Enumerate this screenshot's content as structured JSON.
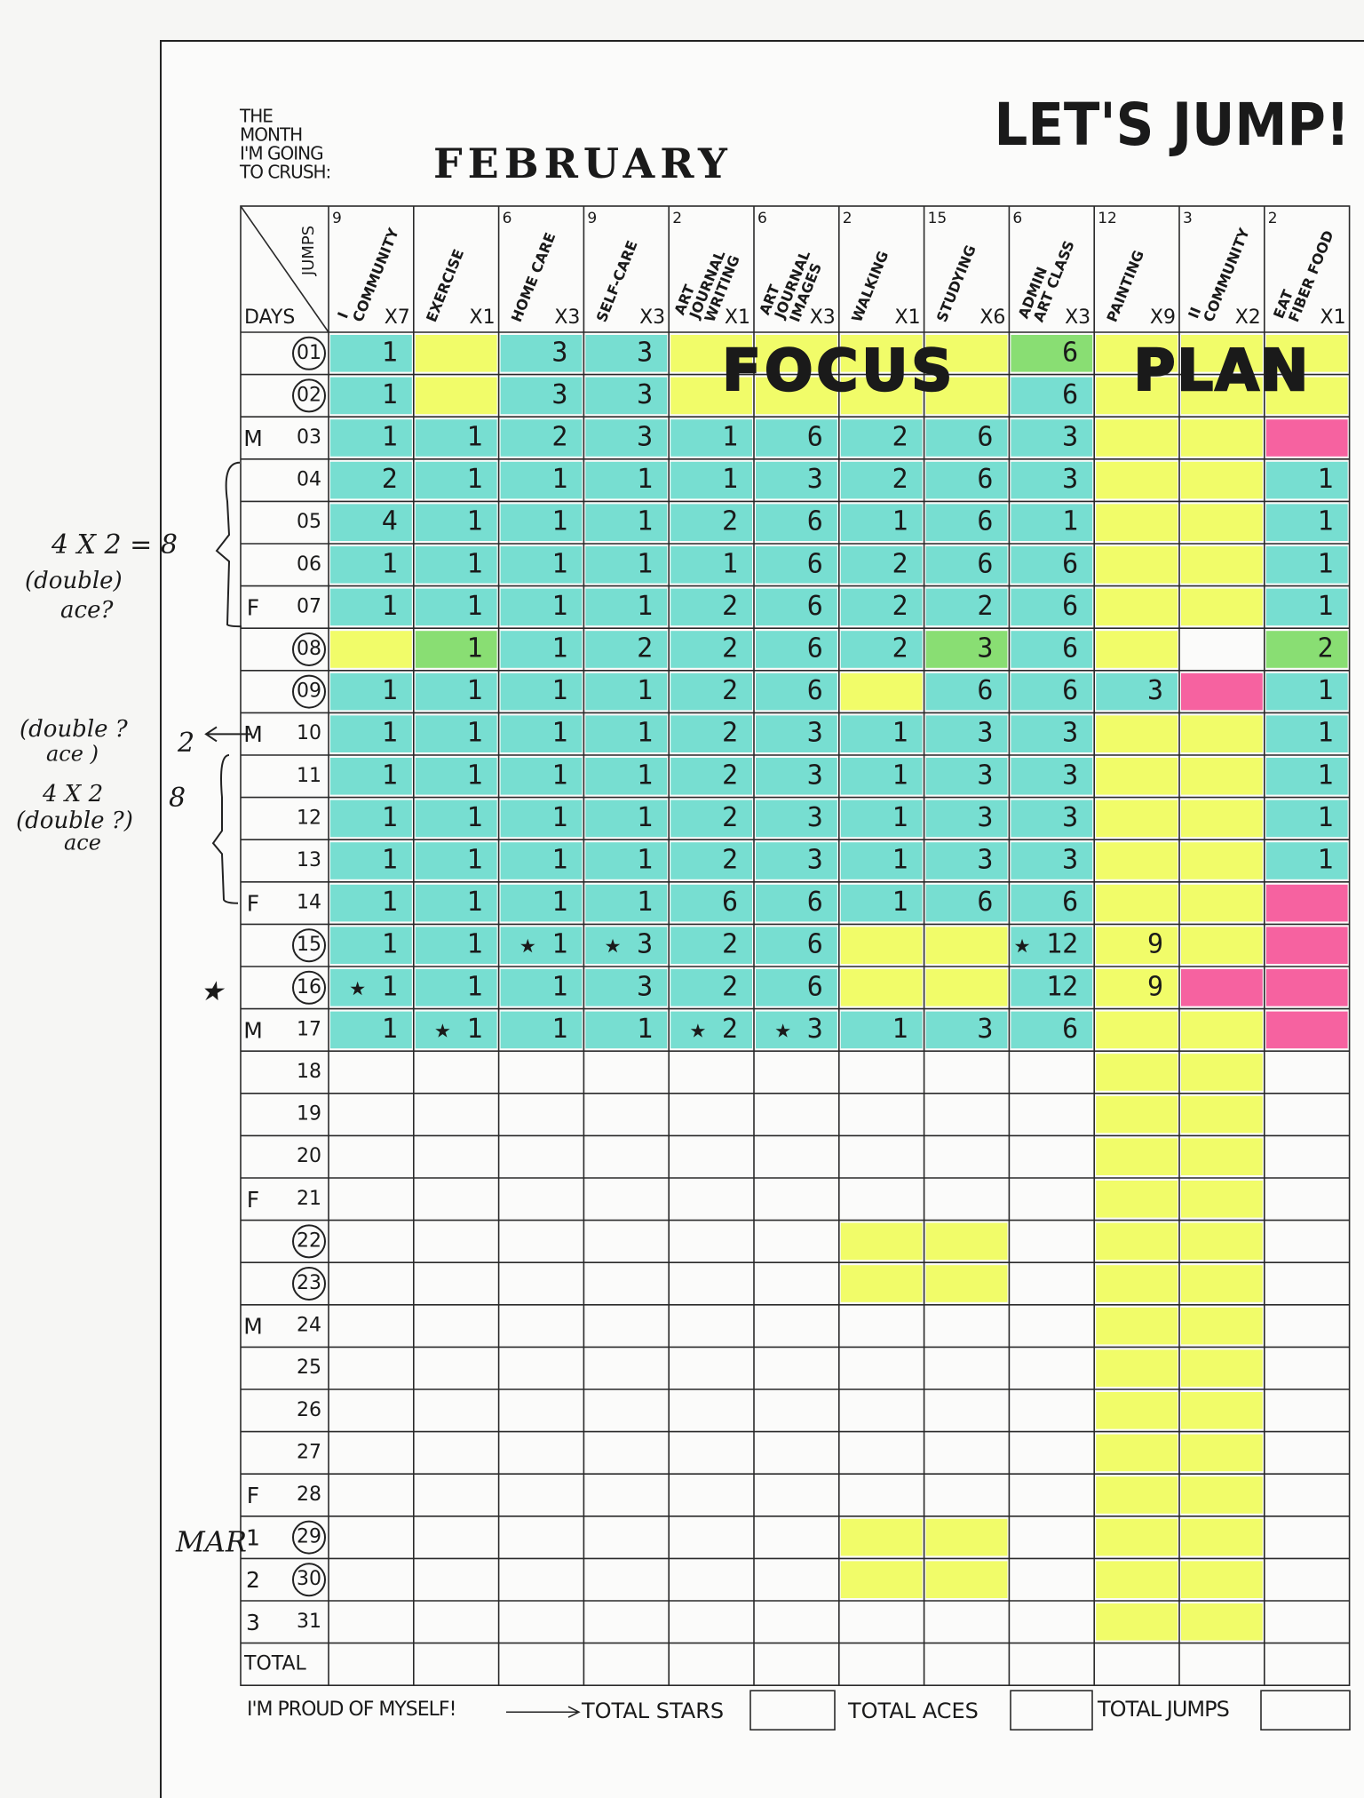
{
  "header": {
    "month_prompt": [
      "THE",
      "MONTH",
      "I'M GOING",
      "TO CRUSH:"
    ],
    "month": "FEBRUARY",
    "title": "LET'S JUMP!"
  },
  "table": {
    "corner": {
      "days": "DAYS",
      "jumps": "JUMPS"
    },
    "columns": [
      {
        "jumps": 9,
        "name": [
          "I",
          "COMMUNITY"
        ],
        "multiplier": "X7"
      },
      {
        "name": [
          "EXERCISE"
        ],
        "multiplier": "X1"
      },
      {
        "jumps": 6,
        "name": [
          "HOME CARE"
        ],
        "multiplier": "X3"
      },
      {
        "jumps": 9,
        "name": [
          "SELF-CARE"
        ],
        "multiplier": "X3"
      },
      {
        "jumps": 2,
        "name": [
          "ART",
          "JOURNAL",
          "WRITING"
        ],
        "multiplier": "X1"
      },
      {
        "jumps": 6,
        "name": [
          "ART",
          "JOURNAL",
          "IMAGES"
        ],
        "multiplier": "X3"
      },
      {
        "jumps": 2,
        "name": [
          "WALKING"
        ],
        "multiplier": "X1"
      },
      {
        "jumps": 15,
        "name": [
          "STUDYING"
        ],
        "multiplier": "X6"
      },
      {
        "jumps": 6,
        "name": [
          "ADMIN",
          "ART CLASS"
        ],
        "multiplier": "X3"
      },
      {
        "jumps": 12,
        "name": [
          "PAINTING"
        ],
        "multiplier": "X9"
      },
      {
        "jumps": 3,
        "name": [
          "II",
          "COMMUNITY"
        ],
        "multiplier": "X2"
      },
      {
        "jumps": 2,
        "name": [
          "EAT",
          "FIBER FOOD"
        ],
        "multiplier": "X1"
      }
    ],
    "overlay": {
      "focus": "FOCUS",
      "plan": "PLAN"
    },
    "rows": [
      {
        "day": "01",
        "circled": true,
        "cells": [
          1,
          null,
          3,
          3,
          null,
          null,
          null,
          null,
          6,
          null,
          null,
          null
        ]
      },
      {
        "day": "02",
        "circled": true,
        "cells": [
          1,
          null,
          3,
          3,
          null,
          null,
          null,
          null,
          6,
          null,
          null,
          null
        ]
      },
      {
        "marker": "M",
        "day": "03",
        "cells": [
          1,
          1,
          2,
          3,
          1,
          6,
          2,
          6,
          3,
          null,
          null,
          null
        ]
      },
      {
        "day": "04",
        "cells": [
          2,
          1,
          1,
          1,
          1,
          3,
          2,
          6,
          3,
          null,
          null,
          1
        ]
      },
      {
        "day": "05",
        "cells": [
          4,
          1,
          1,
          1,
          2,
          6,
          1,
          6,
          1,
          null,
          null,
          1
        ]
      },
      {
        "day": "06",
        "cells": [
          1,
          1,
          1,
          1,
          1,
          6,
          2,
          6,
          6,
          null,
          null,
          1
        ]
      },
      {
        "marker": "F",
        "day": "07",
        "cells": [
          1,
          1,
          1,
          1,
          2,
          6,
          2,
          2,
          6,
          null,
          null,
          1
        ]
      },
      {
        "day": "08",
        "circled": true,
        "cells": [
          null,
          1,
          1,
          2,
          2,
          6,
          2,
          3,
          6,
          null,
          null,
          2
        ]
      },
      {
        "day": "09",
        "circled": true,
        "cells": [
          1,
          1,
          1,
          1,
          2,
          6,
          null,
          6,
          6,
          3,
          null,
          1
        ]
      },
      {
        "marker": "M",
        "day": "10",
        "cells": [
          1,
          1,
          1,
          1,
          2,
          3,
          1,
          3,
          3,
          null,
          null,
          1
        ]
      },
      {
        "day": "11",
        "cells": [
          1,
          1,
          1,
          1,
          2,
          3,
          1,
          3,
          3,
          null,
          null,
          1
        ]
      },
      {
        "day": "12",
        "cells": [
          1,
          1,
          1,
          1,
          2,
          3,
          1,
          3,
          3,
          null,
          null,
          1
        ]
      },
      {
        "day": "13",
        "cells": [
          1,
          1,
          1,
          1,
          2,
          3,
          1,
          3,
          3,
          null,
          null,
          1
        ]
      },
      {
        "marker": "F",
        "day": "14",
        "cells": [
          1,
          1,
          1,
          1,
          6,
          6,
          1,
          6,
          6,
          null,
          null,
          null
        ]
      },
      {
        "day": "15",
        "circled": true,
        "cells": [
          1,
          1,
          "★ 1",
          "★ 3",
          2,
          6,
          null,
          null,
          "★ 12",
          9,
          null,
          null
        ]
      },
      {
        "day": "16",
        "circled": true,
        "cells": [
          "★ 1",
          1,
          1,
          3,
          2,
          6,
          null,
          null,
          12,
          9,
          null,
          null
        ]
      },
      {
        "marker": "M",
        "day": "17",
        "cells": [
          1,
          "★ 1",
          1,
          1,
          "★ 2",
          "★ 3",
          1,
          3,
          6,
          null,
          null,
          null
        ]
      },
      {
        "day": "18"
      },
      {
        "day": "19"
      },
      {
        "day": "20"
      },
      {
        "marker": "F",
        "day": "21"
      },
      {
        "day": "22",
        "circled": true
      },
      {
        "day": "23",
        "circled": true
      },
      {
        "marker": "M",
        "day": "24"
      },
      {
        "day": "25"
      },
      {
        "day": "26"
      },
      {
        "day": "27"
      },
      {
        "marker": "F",
        "day": "28"
      },
      {
        "marker": "1",
        "day": "29",
        "circled": true
      },
      {
        "marker": "2",
        "day": "30",
        "circled": true
      },
      {
        "marker": "3",
        "day": "31"
      }
    ],
    "total": "TOTAL"
  },
  "footer": {
    "proud": "I'M PROUD OF MYSELF!",
    "stars": "TOTAL STARS",
    "aces": "TOTAL ACES",
    "jumps": "TOTAL JUMPS"
  },
  "margin_notes": [
    "4 X 2 = 8",
    "(double)",
    "ace?",
    "(double ?",
    "ace )",
    "2",
    "4 X 2",
    "(double ?)",
    "ace",
    "8",
    "★",
    "MAR"
  ]
}
